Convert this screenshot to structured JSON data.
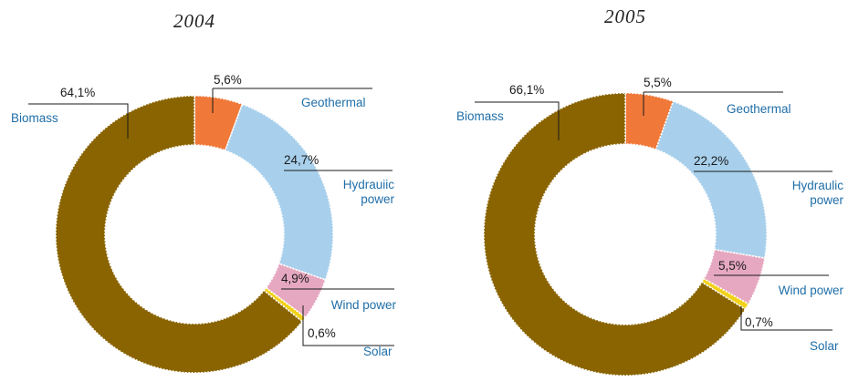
{
  "chart_data": [
    {
      "type": "donut",
      "title": "2004",
      "categories": [
        "Biomass",
        "Geothermal",
        "Hydraulic\npower",
        "Wind power",
        "Solar"
      ],
      "values": [
        64.1,
        5.6,
        24.7,
        4.9,
        0.6
      ],
      "value_labels": [
        "64,1%",
        "5,6%",
        "24,7%",
        "4,9%",
        "0,6%"
      ],
      "category_labels": [
        "Biomass",
        "Geothermal",
        "Hydrauiic power",
        "Wind power",
        "Solar"
      ]
    },
    {
      "type": "donut",
      "title": "2005",
      "categories": [
        "Biomass",
        "Geothermal",
        "Hydraulic power",
        "Wind power",
        "Solar"
      ],
      "values": [
        66.1,
        5.5,
        22.2,
        5.5,
        0.7
      ],
      "value_labels": [
        "66,1%",
        "5,5%",
        "22,2%",
        "5,5%",
        "0,7%"
      ],
      "category_labels": [
        "Biomass",
        "Geothermal",
        "Hydraulic power",
        "Wind power",
        "Solar"
      ]
    }
  ],
  "colors": {
    "Biomass": "#8a6400",
    "Geothermal": "#f07838",
    "Hydraulic power": "#a8d0ec",
    "Wind power": "#e6a8c0",
    "Solar": "#f2d21a"
  }
}
